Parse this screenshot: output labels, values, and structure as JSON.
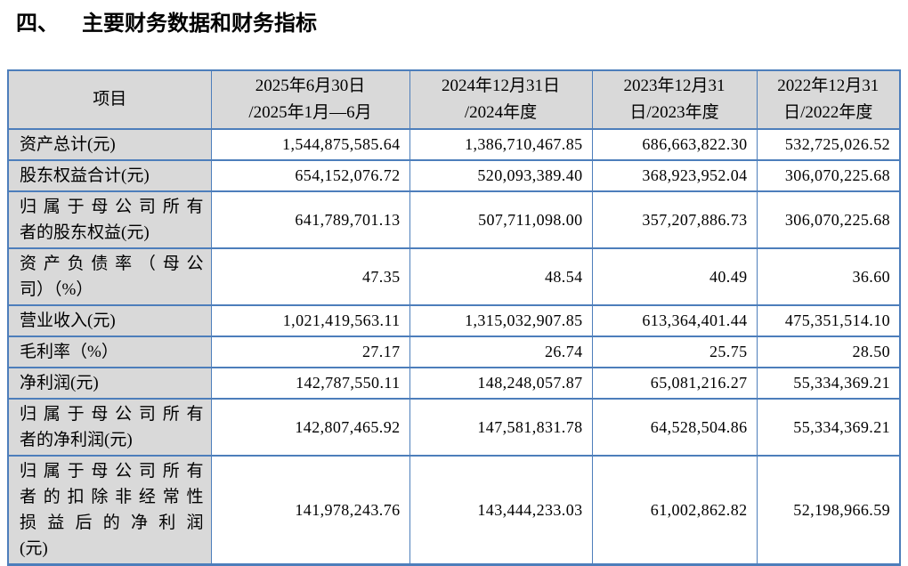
{
  "title": {
    "number": "四、",
    "text": "主要财务数据和财务指标"
  },
  "colors": {
    "border_blue": "#4d7ebb",
    "header_gray": "#d9d9d9",
    "text": "#000000"
  },
  "table": {
    "header": {
      "item_label": "项目",
      "periods": [
        {
          "lines": [
            "2025年6月30日",
            "/2025年1月—6月"
          ]
        },
        {
          "lines": [
            "2024年12月31日",
            "/2024年度"
          ]
        },
        {
          "lines": [
            "2023年12月31",
            "日/2023年度"
          ]
        },
        {
          "lines": [
            "2022年12月31",
            "日/2022年度"
          ]
        }
      ]
    },
    "rows": [
      {
        "label_lines": [
          "资产总计(元)"
        ],
        "values": [
          "1,544,875,585.64",
          "1,386,710,467.85",
          "686,663,822.30",
          "532,725,026.52"
        ]
      },
      {
        "label_lines": [
          "股东权益合计(元)"
        ],
        "values": [
          "654,152,076.72",
          "520,093,389.40",
          "368,923,952.04",
          "306,070,225.68"
        ]
      },
      {
        "label_lines": [
          "归属于母公司所有",
          "者的股东权益(元)"
        ],
        "values": [
          "641,789,701.13",
          "507,711,098.00",
          "357,207,886.73",
          "306,070,225.68"
        ]
      },
      {
        "label_lines": [
          "资产负债率（母公",
          "司）（%）"
        ],
        "values": [
          "47.35",
          "48.54",
          "40.49",
          "36.60"
        ]
      },
      {
        "label_lines": [
          "营业收入(元)"
        ],
        "values": [
          "1,021,419,563.11",
          "1,315,032,907.85",
          "613,364,401.44",
          "475,351,514.10"
        ]
      },
      {
        "label_lines": [
          "毛利率（%）"
        ],
        "values": [
          "27.17",
          "26.74",
          "25.75",
          "28.50"
        ]
      },
      {
        "label_lines": [
          "净利润(元)"
        ],
        "values": [
          "142,787,550.11",
          "148,248,057.87",
          "65,081,216.27",
          "55,334,369.21"
        ]
      },
      {
        "label_lines": [
          "归属于母公司所有",
          "者的净利润(元)"
        ],
        "values": [
          "142,807,465.92",
          "147,581,831.78",
          "64,528,504.86",
          "55,334,369.21"
        ]
      },
      {
        "label_lines": [
          "归属于母公司所有",
          "者的扣除非经常性",
          "损益后的净利润",
          "(元)"
        ],
        "values": [
          "141,978,243.76",
          "143,444,233.03",
          "61,002,862.82",
          "52,198,966.59"
        ]
      }
    ]
  }
}
